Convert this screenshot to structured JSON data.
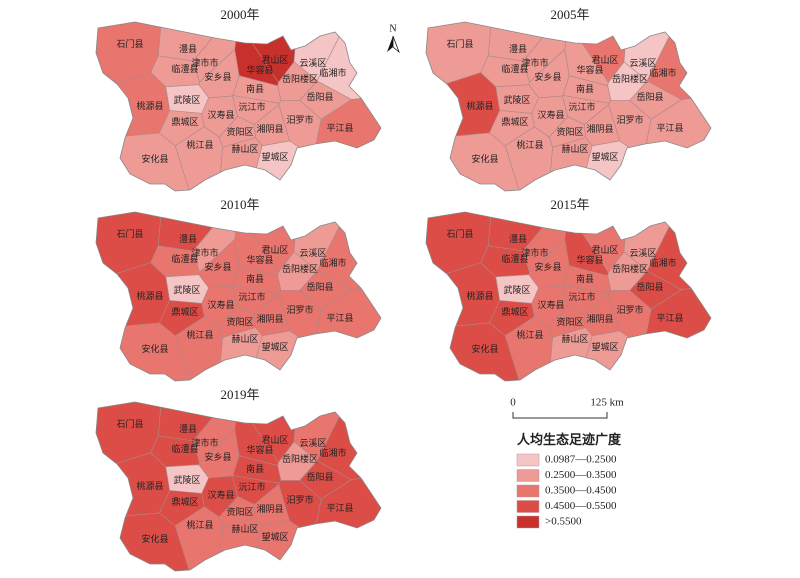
{
  "north": "N",
  "counties": [
    "石门县",
    "澧县",
    "临澧县",
    "津市市",
    "安乡县",
    "华容县",
    "君山区",
    "云溪区",
    "临湘市",
    "岳阳楼区",
    "武陵区",
    "鼎城区",
    "桃源县",
    "南县",
    "汉寿县",
    "沅江市",
    "岳阳县",
    "汨罗市",
    "平江县",
    "湘阴县",
    "资阳区",
    "赫山区",
    "桃江县",
    "安化县",
    "望城区"
  ],
  "panels": [
    {
      "title": "2000年",
      "fills": [
        "#e8756e",
        "#ee9b95",
        "#ee9b95",
        "#ee9b95",
        "#ee9b95",
        "#c8302c",
        "#c8302c",
        "#f5c4c4",
        "#f5c4c4",
        "#ee9b95",
        "#f5c4c4",
        "#ee9b95",
        "#e8756e",
        "#ee9b95",
        "#ee9b95",
        "#ee9b95",
        "#ee9b95",
        "#ee9b95",
        "#e8756e",
        "#ee9b95",
        "#ee9b95",
        "#ee9b95",
        "#ee9b95",
        "#ee9b95",
        "#f5c4c4"
      ]
    },
    {
      "title": "2005年",
      "fills": [
        "#ee9b95",
        "#ee9b95",
        "#ee9b95",
        "#ee9b95",
        "#ee9b95",
        "#ee9b95",
        "#e8756e",
        "#f5c4c4",
        "#e8756e",
        "#f5c4c4",
        "#ee9b95",
        "#ee9b95",
        "#dc4d47",
        "#ee9b95",
        "#ee9b95",
        "#ee9b95",
        "#ee9b95",
        "#ee9b95",
        "#ee9b95",
        "#ee9b95",
        "#ee9b95",
        "#ee9b95",
        "#ee9b95",
        "#ee9b95",
        "#f5c4c4"
      ]
    },
    {
      "title": "2010年",
      "fills": [
        "#dc4d47",
        "#dc4d47",
        "#e8756e",
        "#ee9b95",
        "#e8756e",
        "#e8756e",
        "#e8756e",
        "#ee9b95",
        "#e8756e",
        "#ee9b95",
        "#f5c4c4",
        "#dc4d47",
        "#dc4d47",
        "#e8756e",
        "#e8756e",
        "#e8756e",
        "#e8756e",
        "#e8756e",
        "#e8756e",
        "#e8756e",
        "#e8756e",
        "#ee9b95",
        "#e8756e",
        "#e8756e",
        "#ee9b95"
      ]
    },
    {
      "title": "2015年",
      "fills": [
        "#dc4d47",
        "#dc4d47",
        "#dc4d47",
        "#e8756e",
        "#e8756e",
        "#dc4d47",
        "#e8756e",
        "#ee9b95",
        "#dc4d47",
        "#ee9b95",
        "#f5c4c4",
        "#dc4d47",
        "#dc4d47",
        "#e8756e",
        "#e8756e",
        "#e8756e",
        "#dc4d47",
        "#e8756e",
        "#dc4d47",
        "#e8756e",
        "#e8756e",
        "#ee9b95",
        "#e8756e",
        "#dc4d47",
        "#ee9b95"
      ]
    },
    {
      "title": "2019年",
      "fills": [
        "#dc4d47",
        "#dc4d47",
        "#dc4d47",
        "#e8756e",
        "#e8756e",
        "#dc4d47",
        "#dc4d47",
        "#e8756e",
        "#dc4d47",
        "#ee9b95",
        "#f5c4c4",
        "#dc4d47",
        "#dc4d47",
        "#dc4d47",
        "#dc4d47",
        "#dc4d47",
        "#dc4d47",
        "#dc4d47",
        "#dc4d47",
        "#e8756e",
        "#e8756e",
        "#e8756e",
        "#e8756e",
        "#dc4d47",
        "#e8756e"
      ]
    }
  ],
  "scale": {
    "start": "0",
    "end": "125 km"
  },
  "legend": {
    "title": "人均生态足迹广度",
    "items": [
      {
        "label": "0.0987—0.2500",
        "color": "#f5c4c4"
      },
      {
        "label": "0.2500—0.3500",
        "color": "#ee9b95"
      },
      {
        "label": "0.3500—0.4500",
        "color": "#e8756e"
      },
      {
        "label": "0.4500—0.5500",
        "color": "#dc4d47"
      },
      {
        "label": ">0.5500",
        "color": "#c8302c"
      }
    ]
  }
}
